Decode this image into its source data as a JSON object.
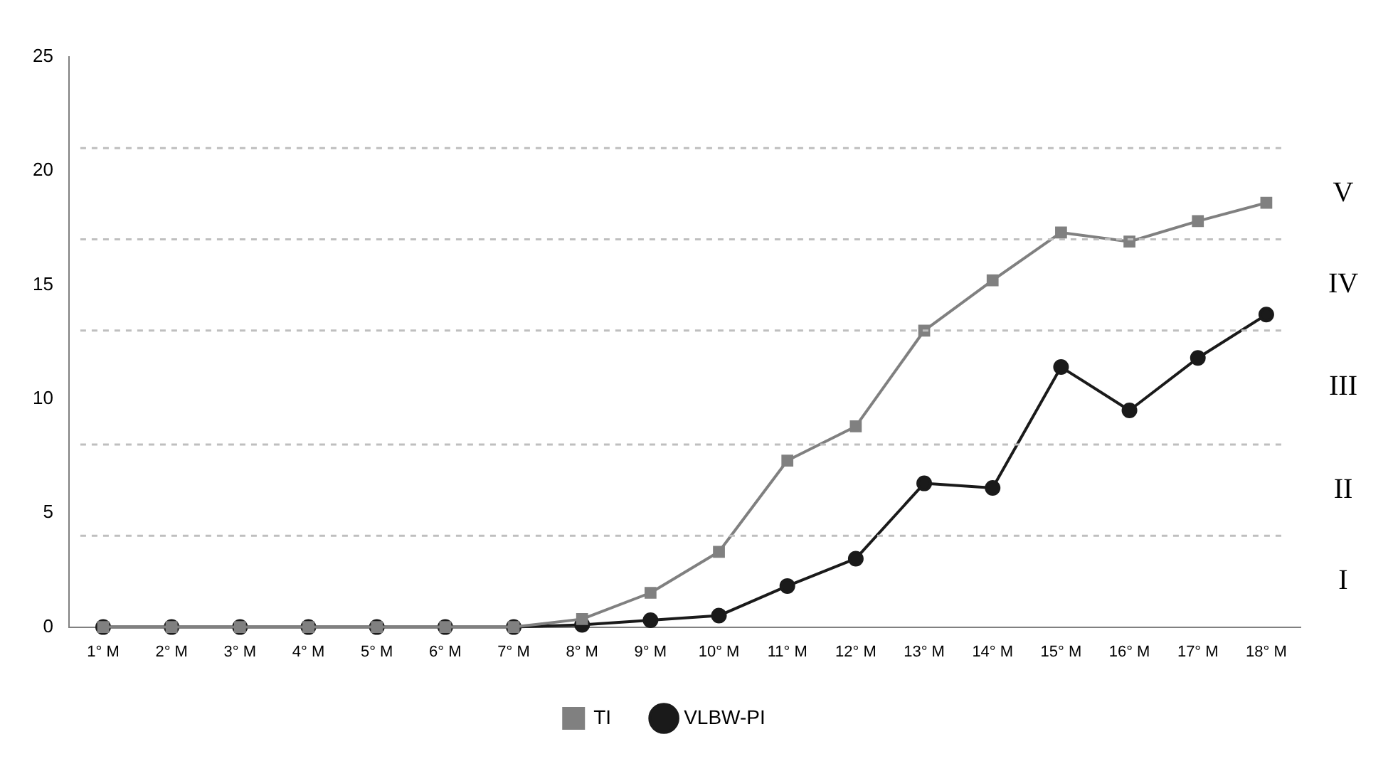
{
  "chart_data": {
    "type": "line",
    "categories": [
      "1° M",
      "2° M",
      "3° M",
      "4° M",
      "5° M",
      "6° M",
      "7° M",
      "8° M",
      "9° M",
      "10° M",
      "11° M",
      "12° M",
      "13° M",
      "14° M",
      "15° M",
      "16° M",
      "17° M",
      "18° M"
    ],
    "series": [
      {
        "name": "VLBW-PI",
        "color": "#1a1a1a",
        "marker": "circle",
        "values": [
          0,
          0,
          0,
          0,
          0,
          0,
          0,
          0.1,
          0.3,
          0.5,
          1.8,
          3.0,
          6.3,
          6.1,
          11.4,
          9.5,
          11.8,
          13.7
        ]
      },
      {
        "name": "TI",
        "color": "#808080",
        "marker": "square",
        "values": [
          0,
          0,
          0,
          0,
          0,
          0,
          0,
          0.35,
          1.5,
          3.3,
          7.3,
          8.8,
          13.0,
          15.2,
          17.3,
          16.9,
          17.8,
          18.6
        ]
      }
    ],
    "ylim": [
      0,
      25
    ],
    "yticks": [
      0,
      5,
      10,
      15,
      20,
      25
    ],
    "grid": false,
    "legend": "bottom",
    "line_style": "solid",
    "ref_lines": [
      {
        "axis": "y",
        "value": 4,
        "color": "#bfbfbf",
        "line_style": "dashed"
      },
      {
        "axis": "y",
        "value": 8,
        "color": "#bfbfbf",
        "line_style": "dashed"
      },
      {
        "axis": "y",
        "value": 13,
        "color": "#bfbfbf",
        "line_style": "dashed"
      },
      {
        "axis": "y",
        "value": 17,
        "color": "#bfbfbf",
        "line_style": "dashed"
      },
      {
        "axis": "y",
        "value": 21,
        "color": "#bfbfbf",
        "line_style": "dashed"
      }
    ],
    "annotations": [
      "I",
      "II",
      "III",
      "IV",
      "V"
    ]
  }
}
